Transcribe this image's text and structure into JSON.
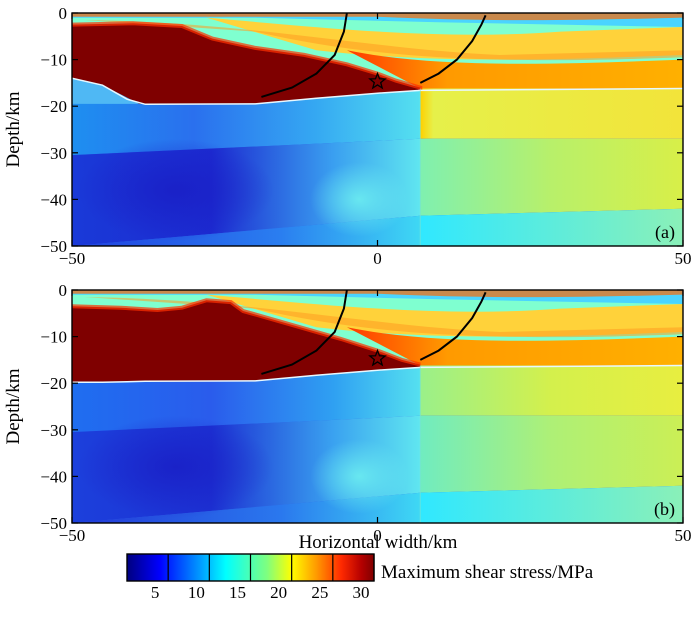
{
  "panels": [
    {
      "id": "a",
      "label": "(a)",
      "variant": "a"
    },
    {
      "id": "b",
      "label": "(b)",
      "variant": "b"
    }
  ],
  "axes": {
    "x": {
      "min": -50,
      "max": 50,
      "ticks": [
        -50,
        0,
        50
      ],
      "tick_labels": [
        "−50",
        "0",
        "50"
      ],
      "label": "Horizontal width/km"
    },
    "y": {
      "min": -50,
      "max": 0,
      "ticks": [
        0,
        -10,
        -20,
        -30,
        -40,
        -50
      ],
      "tick_labels": [
        "0",
        "−10",
        "−20",
        "−30",
        "−40",
        "−50"
      ],
      "label": "Depth/km"
    }
  },
  "faults": {
    "left": [
      [
        -19,
        -18
      ],
      [
        -14,
        -16
      ],
      [
        -10,
        -13
      ],
      [
        -7,
        -9
      ],
      [
        -5.5,
        -4
      ],
      [
        -5,
        0
      ]
    ],
    "right": [
      [
        7,
        -15
      ],
      [
        10,
        -13
      ],
      [
        13,
        -10
      ],
      [
        15.5,
        -6
      ],
      [
        17,
        -2.5
      ],
      [
        17.7,
        -0.5
      ]
    ]
  },
  "epicenter": {
    "x": 0,
    "y": -14.7,
    "symbol": "star"
  },
  "colorbar": {
    "label": "Maximum shear stress/MPa",
    "min": 0,
    "max": 30,
    "ticks": [
      5,
      10,
      15,
      20,
      25,
      30
    ],
    "tick_labels": [
      "5",
      "10",
      "15",
      "20",
      "25",
      "30"
    ],
    "stops": [
      {
        "v": 0,
        "color": "#00007f"
      },
      {
        "v": 4,
        "color": "#0000ff"
      },
      {
        "v": 8,
        "color": "#007fff"
      },
      {
        "v": 12,
        "color": "#00ffff"
      },
      {
        "v": 17,
        "color": "#7fff7f"
      },
      {
        "v": 20,
        "color": "#ffff00"
      },
      {
        "v": 23,
        "color": "#ff9a00"
      },
      {
        "v": 26,
        "color": "#ff2a00"
      },
      {
        "v": 28.5,
        "color": "#b30000"
      },
      {
        "v": 30,
        "color": "#7f0000"
      }
    ]
  },
  "colors": {
    "deep_blue": "#1c2cd2",
    "mid_blue": "#2a6ef0",
    "cyan": "#45e6f0",
    "yellow_green": "#dff040",
    "saturated_red": "#7f0000",
    "orange": "#ff9a00"
  }
}
